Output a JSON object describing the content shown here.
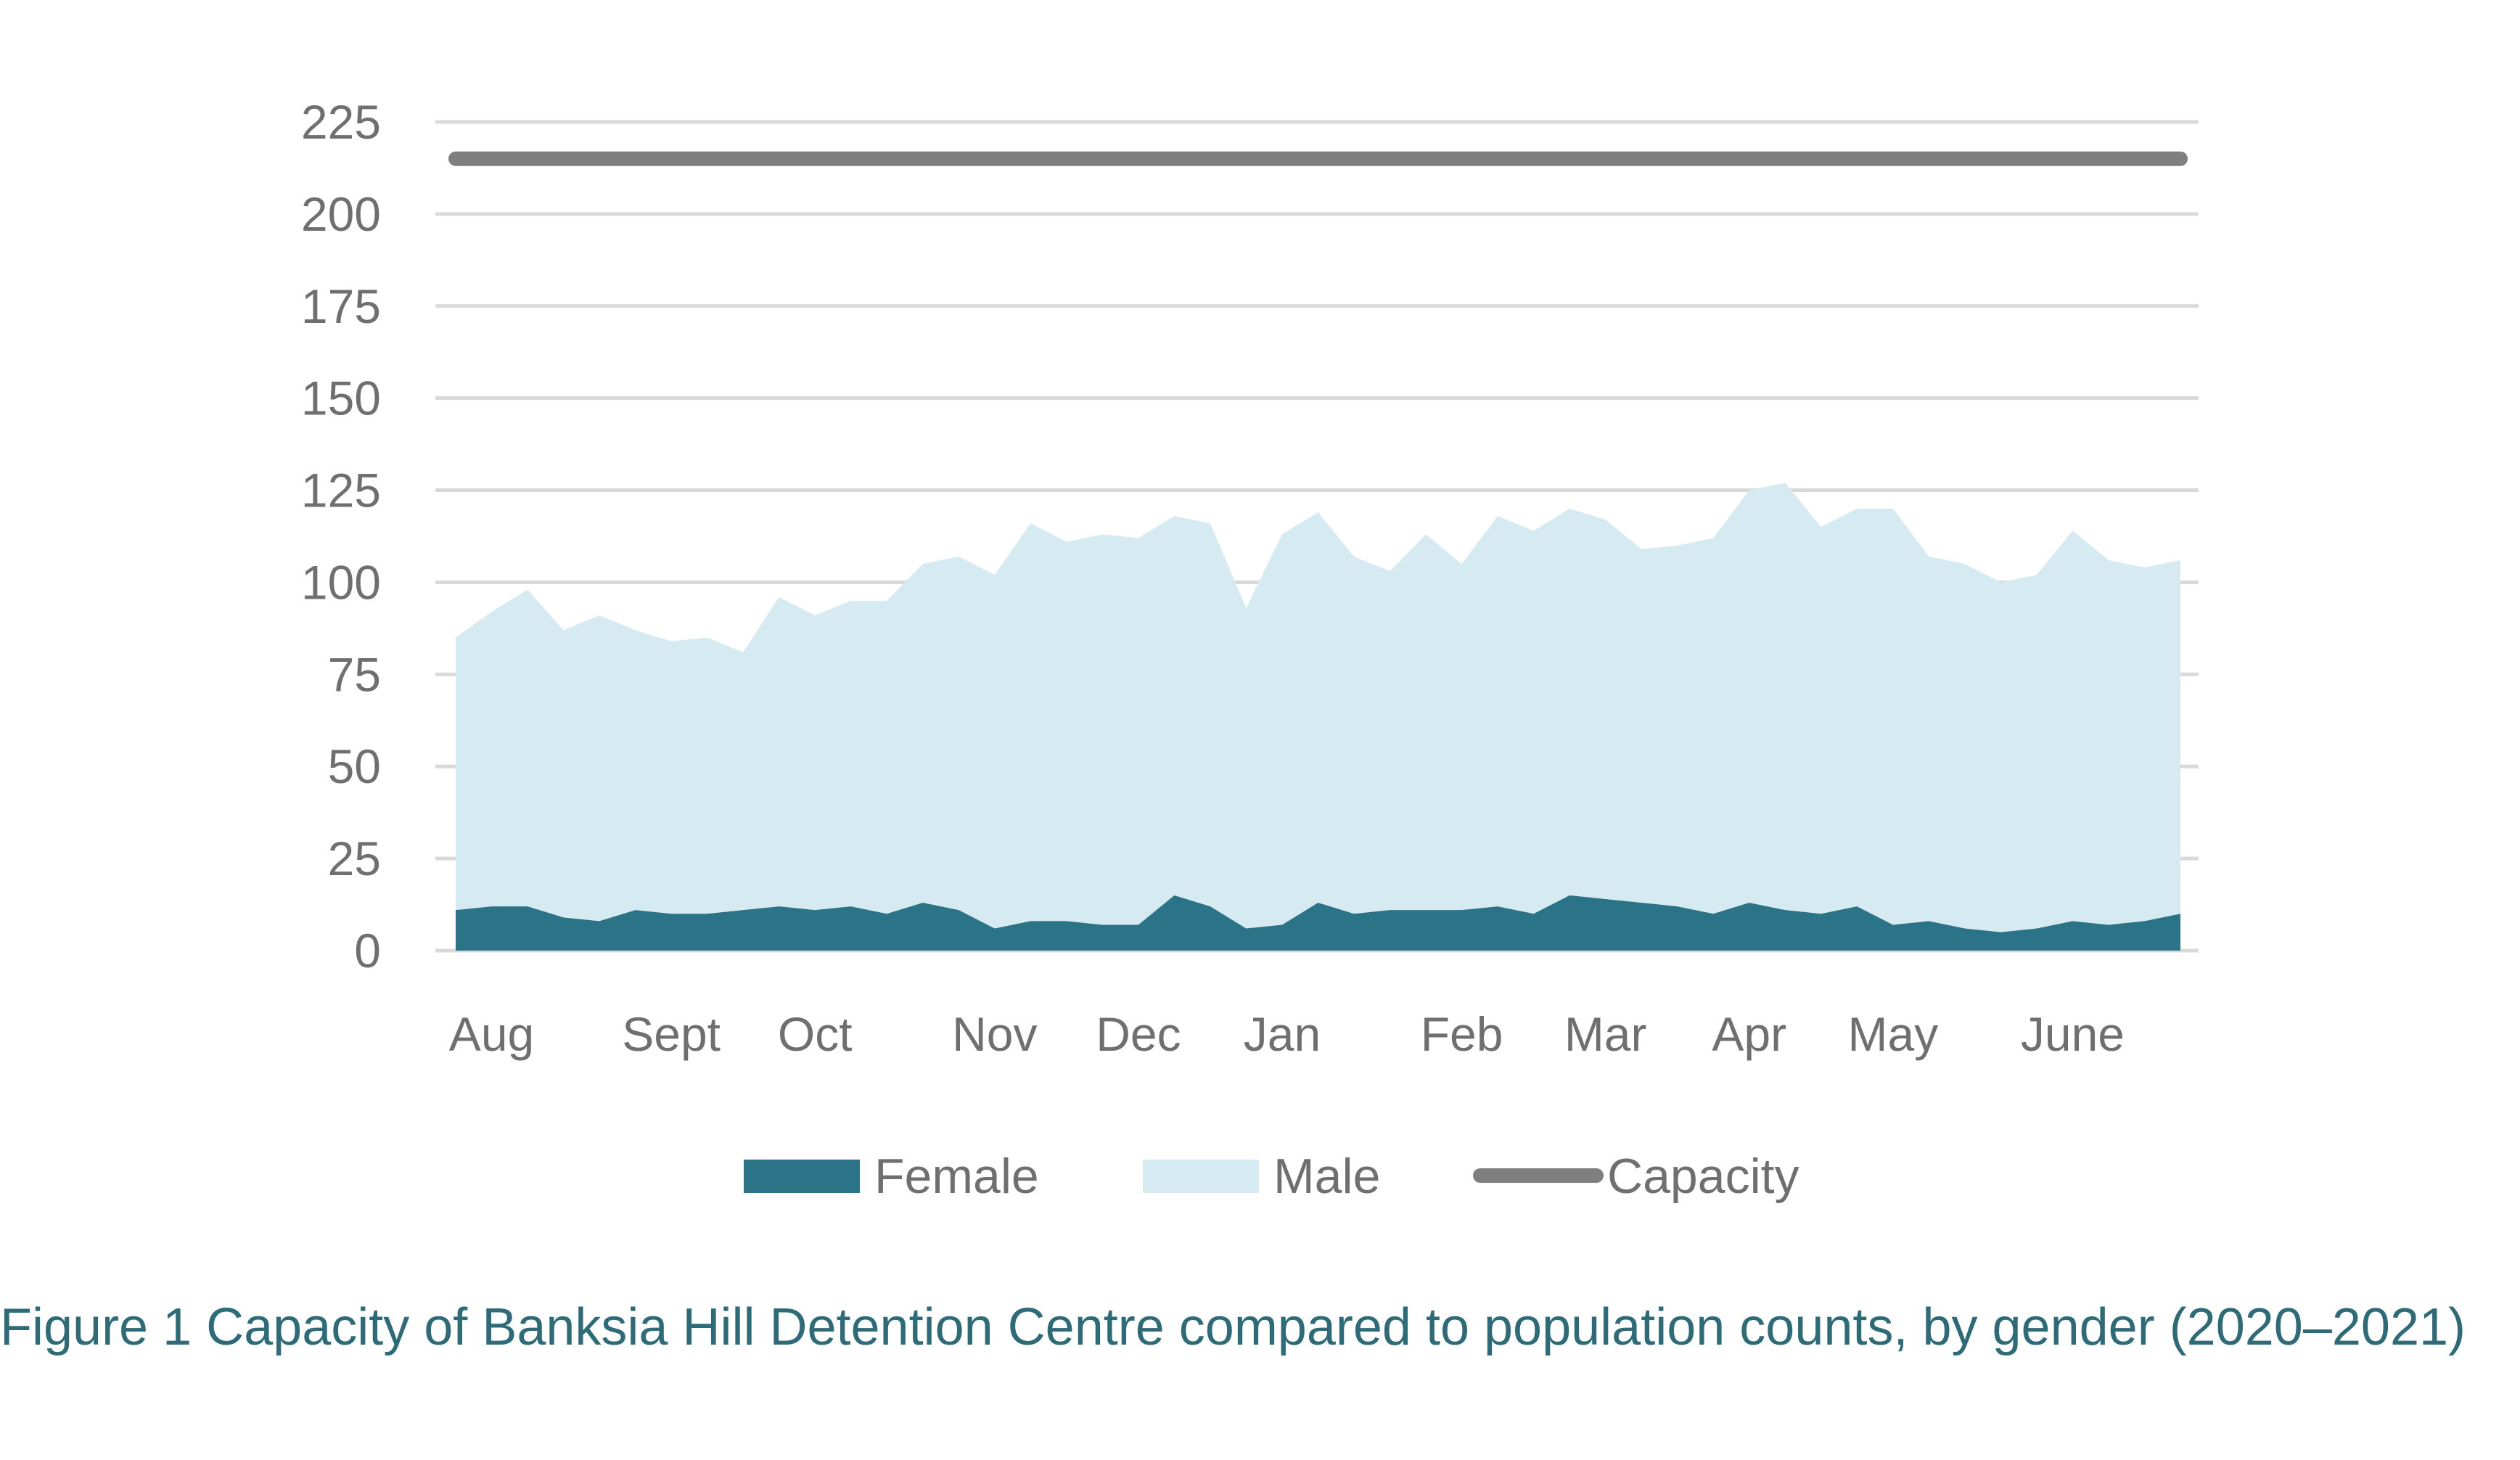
{
  "colors": {
    "female": "#2b7386",
    "male": "#d6eaf1",
    "capacity": "#7f7f7f",
    "grid": "#d9d9d9",
    "caption": "#2e6b78",
    "tick_text": "#6f6f6f"
  },
  "caption": "Figure 1 Capacity of Banksia Hill Detention Centre compared to population counts, by gender (2020–2021)",
  "chart_data": {
    "type": "area",
    "title": "",
    "xlabel": "",
    "ylabel": "",
    "ylim": [
      0,
      225
    ],
    "yticks": [
      0,
      25,
      50,
      75,
      100,
      125,
      150,
      175,
      200,
      225
    ],
    "grid": true,
    "legend": "bottom",
    "stacked": true,
    "month_labels": [
      {
        "label": "Aug",
        "index": 1
      },
      {
        "label": "Sept",
        "index": 6
      },
      {
        "label": "Oct",
        "index": 10
      },
      {
        "label": "Nov",
        "index": 15
      },
      {
        "label": "Dec",
        "index": 19
      },
      {
        "label": "Jan",
        "index": 23
      },
      {
        "label": "Feb",
        "index": 28
      },
      {
        "label": "Mar",
        "index": 32
      },
      {
        "label": "Apr",
        "index": 36
      },
      {
        "label": "May",
        "index": 40
      },
      {
        "label": "June",
        "index": 45
      }
    ],
    "series": [
      {
        "name": "Female",
        "kind": "area",
        "values": [
          11,
          12,
          12,
          9,
          8,
          11,
          10,
          10,
          11,
          12,
          11,
          12,
          10,
          13,
          11,
          6,
          8,
          8,
          7,
          7,
          15,
          12,
          6,
          7,
          13,
          10,
          11,
          11,
          11,
          12,
          10,
          15,
          14,
          13,
          12,
          10,
          13,
          11,
          10,
          12,
          7,
          8,
          6,
          5,
          6,
          8,
          7,
          8,
          10
        ]
      },
      {
        "name": "Male",
        "kind": "area",
        "values": [
          74,
          80,
          86,
          78,
          83,
          76,
          74,
          75,
          70,
          84,
          80,
          83,
          85,
          92,
          96,
          96,
          108,
          103,
          106,
          105,
          103,
          104,
          87,
          106,
          106,
          97,
          92,
          102,
          94,
          106,
          104,
          105,
          103,
          96,
          98,
          102,
          112,
          116,
          105,
          108,
          113,
          99,
          99,
          95,
          96,
          106,
          99,
          96,
          96
        ]
      },
      {
        "name": "Capacity",
        "kind": "line",
        "values": [
          215,
          215,
          215,
          215,
          215,
          215,
          215,
          215,
          215,
          215,
          215,
          215,
          215,
          215,
          215,
          215,
          215,
          215,
          215,
          215,
          215,
          215,
          215,
          215,
          215,
          215,
          215,
          215,
          215,
          215,
          215,
          215,
          215,
          215,
          215,
          215,
          215,
          215,
          215,
          215,
          215,
          215,
          215,
          215,
          215,
          215,
          215,
          215,
          215
        ]
      }
    ]
  }
}
